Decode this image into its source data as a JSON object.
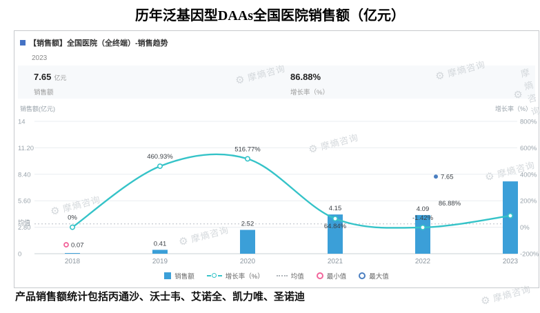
{
  "page": {
    "title": "历年泛基因型DAAs全国医院销售额（亿元）",
    "footnote": "产品销售额统计包括丙通沙、沃士韦、艾诺全、凯力唯、圣诺迪"
  },
  "panel": {
    "header": "【销售额】全国医院（全终端）-销售趋势",
    "period": "2023",
    "stats": [
      {
        "value": "7.65",
        "unit": "亿元",
        "label": "销售额"
      },
      {
        "value": "86.88%",
        "unit": "",
        "label": "增长率（%）"
      }
    ]
  },
  "watermark": {
    "text": "摩熵咨询",
    "icon": "gear"
  },
  "chart_data": {
    "type": "bar+line",
    "categories": [
      "2018",
      "2019",
      "2020",
      "2021",
      "2022",
      "2023"
    ],
    "series": [
      {
        "name": "销售额",
        "type": "bar",
        "values": [
          0.07,
          0.41,
          2.52,
          4.15,
          4.09,
          7.65
        ],
        "value_labels": [
          "0.07",
          "0.41",
          "2.52",
          "4.15",
          "4.09",
          "7.65"
        ],
        "color": "#3b9fd8"
      },
      {
        "name": "增长率（%）",
        "type": "line",
        "values": [
          0,
          460.93,
          516.77,
          64.84,
          -1.42,
          86.88
        ],
        "labels": [
          "0%",
          "460.93%",
          "516.77%",
          "64.84%",
          "-1.42%",
          "86.88%"
        ],
        "color": "#35c3c8"
      }
    ],
    "left_axis": {
      "title": "销售额(亿元)",
      "ticks": [
        "14",
        "11.20",
        "8.40",
        "5.60",
        "2.80",
        "0"
      ],
      "min": 0,
      "max": 14
    },
    "right_axis": {
      "title": "增长率（%）",
      "ticks": [
        "800%",
        "600%",
        "400%",
        "200%",
        "0%",
        "-200%"
      ],
      "min": -200,
      "max": 800
    },
    "mean": {
      "label": "均值",
      "value": 3.15
    },
    "min_point": {
      "index": 0,
      "category": "2018",
      "value": 0.07,
      "label": "0.07",
      "color": "#f2649a"
    },
    "max_point": {
      "index": 5,
      "category": "2023",
      "value": 7.65,
      "label": "7.65",
      "color": "#4a7ec0"
    },
    "legend": [
      "销售额",
      "增长率（%）",
      "均值",
      "最小值",
      "最大值"
    ],
    "legend_position": "bottom",
    "grid": true
  }
}
